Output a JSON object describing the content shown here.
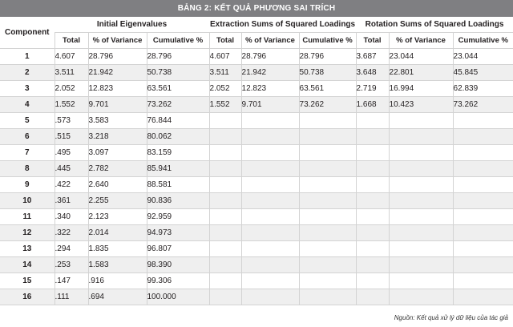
{
  "title": "BẢNG 2: KẾT QUẢ PHƯƠNG SAI TRÍCH",
  "headers": {
    "component": "Component",
    "groups": [
      "Initial Eigenvalues",
      "Extraction Sums of Squared Loadings",
      "Rotation Sums of Squared Loadings"
    ],
    "sub": [
      "Total",
      "% of Variance",
      "Cumulative %"
    ]
  },
  "rows": [
    [
      "1",
      "4.607",
      "28.796",
      "28.796",
      "4.607",
      "28.796",
      "28.796",
      "3.687",
      "23.044",
      "23.044"
    ],
    [
      "2",
      "3.511",
      "21.942",
      "50.738",
      "3.511",
      "21.942",
      "50.738",
      "3.648",
      "22.801",
      "45.845"
    ],
    [
      "3",
      "2.052",
      "12.823",
      "63.561",
      "2.052",
      "12.823",
      "63.561",
      "2.719",
      "16.994",
      "62.839"
    ],
    [
      "4",
      "1.552",
      "9.701",
      "73.262",
      "1.552",
      "9.701",
      "73.262",
      "1.668",
      "10.423",
      "73.262"
    ],
    [
      "5",
      ".573",
      "3.583",
      "76.844",
      "",
      "",
      "",
      "",
      "",
      ""
    ],
    [
      "6",
      ".515",
      "3.218",
      "80.062",
      "",
      "",
      "",
      "",
      "",
      ""
    ],
    [
      "7",
      ".495",
      "3.097",
      "83.159",
      "",
      "",
      "",
      "",
      "",
      ""
    ],
    [
      "8",
      ".445",
      "2.782",
      "85.941",
      "",
      "",
      "",
      "",
      "",
      ""
    ],
    [
      "9",
      ".422",
      "2.640",
      "88.581",
      "",
      "",
      "",
      "",
      "",
      ""
    ],
    [
      "10",
      ".361",
      "2.255",
      "90.836",
      "",
      "",
      "",
      "",
      "",
      ""
    ],
    [
      "11",
      ".340",
      "2.123",
      "92.959",
      "",
      "",
      "",
      "",
      "",
      ""
    ],
    [
      "12",
      ".322",
      "2.014",
      "94.973",
      "",
      "",
      "",
      "",
      "",
      ""
    ],
    [
      "13",
      ".294",
      "1.835",
      "96.807",
      "",
      "",
      "",
      "",
      "",
      ""
    ],
    [
      "14",
      ".253",
      "1.583",
      "98.390",
      "",
      "",
      "",
      "",
      "",
      ""
    ],
    [
      "15",
      ".147",
      ".916",
      "99.306",
      "",
      "",
      "",
      "",
      "",
      ""
    ],
    [
      "16",
      ".111",
      ".694",
      "100.000",
      "",
      "",
      "",
      "",
      "",
      ""
    ]
  ],
  "source": "Nguồn: Kết quả xử lý dữ liệu của tác giả"
}
